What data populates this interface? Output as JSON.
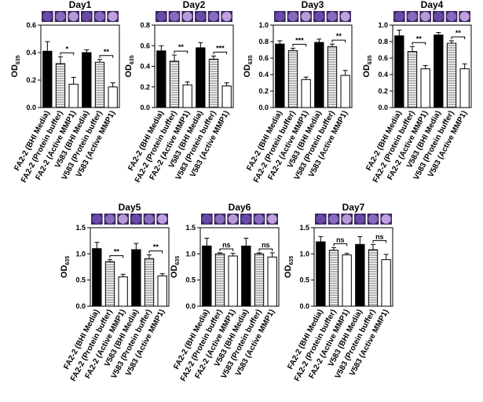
{
  "chart_data": [
    {
      "type": "bar",
      "title": "Day1",
      "ylabel": "OD",
      "ylabel_sub": "635",
      "categories": [
        "FA2-2 (BHI Media)",
        "FA2-2 (Protein buffer)",
        "FA2-2 (Active MMP1)",
        "V583 (BHI Media)",
        "V583 (Protein buffer)",
        "V583 (Active MMP1)"
      ],
      "values": [
        0.41,
        0.32,
        0.17,
        0.4,
        0.33,
        0.15
      ],
      "errors": [
        0.07,
        0.05,
        0.05,
        0.02,
        0.02,
        0.03
      ],
      "bar_styles": [
        "solid",
        "hatched",
        "open",
        "solid",
        "hatched",
        "open"
      ],
      "ylim": [
        0,
        0.6
      ],
      "yticks": [
        {
          "value": 0,
          "label": "0.0"
        },
        0.2,
        0.4,
        0.6
      ],
      "annotations": [
        "*",
        "**"
      ]
    },
    {
      "type": "bar",
      "title": "Day2",
      "ylabel": "OD",
      "ylabel_sub": "635",
      "categories": [
        "FA2-2 (BHI Media)",
        "FA2-2 (Protein buffer)",
        "FA2-2 (Active MMP1)",
        "V583 (BHI Media)",
        "V583 (Protein buffer)",
        "V583 (Active MMP1)"
      ],
      "values": [
        0.55,
        0.45,
        0.22,
        0.58,
        0.47,
        0.21
      ],
      "errors": [
        0.05,
        0.06,
        0.03,
        0.05,
        0.03,
        0.03
      ],
      "bar_styles": [
        "solid",
        "hatched",
        "open",
        "solid",
        "hatched",
        "open"
      ],
      "ylim": [
        0,
        0.8
      ],
      "yticks": [
        {
          "value": 0,
          "label": "0.0"
        },
        0.2,
        0.4,
        0.6,
        0.8
      ],
      "annotations": [
        "**",
        "***"
      ]
    },
    {
      "type": "bar",
      "title": "Day3",
      "ylabel": "OD",
      "ylabel_sub": "635",
      "categories": [
        "FA2-2 (BHI Media)",
        "FA2-2 (Protein buffer)",
        "FA2-2 (Active MMP1)",
        "V583 (BHI Media)",
        "V583 (Protein buffer)",
        "V583 (Active MMP1)"
      ],
      "values": [
        0.77,
        0.69,
        0.34,
        0.79,
        0.74,
        0.39
      ],
      "errors": [
        0.04,
        0.03,
        0.03,
        0.04,
        0.03,
        0.06
      ],
      "bar_styles": [
        "solid",
        "hatched",
        "open",
        "solid",
        "hatched",
        "open"
      ],
      "ylim": [
        0,
        1.0
      ],
      "yticks": [
        {
          "value": 0,
          "label": "0.0"
        },
        0.2,
        0.4,
        0.6,
        0.8,
        {
          "value": 1,
          "label": "1.0"
        }
      ],
      "annotations": [
        "***",
        "**"
      ]
    },
    {
      "type": "bar",
      "title": "Day4",
      "ylabel": "OD",
      "ylabel_sub": "635",
      "categories": [
        "FA2-2 (BHI Media)",
        "FA2-2 (Protein buffer)",
        "FA2-2 (Active MMP1)",
        "V583 (BHI Media)",
        "V583 (Protein buffer)",
        "V583 (Active MMP1)"
      ],
      "values": [
        0.87,
        0.68,
        0.47,
        0.88,
        0.78,
        0.47
      ],
      "errors": [
        0.07,
        0.06,
        0.04,
        0.03,
        0.03,
        0.06
      ],
      "bar_styles": [
        "solid",
        "hatched",
        "open",
        "solid",
        "hatched",
        "open"
      ],
      "ylim": [
        0,
        1.0
      ],
      "yticks": [
        {
          "value": 0,
          "label": "0.0"
        },
        0.2,
        0.4,
        0.6,
        0.8,
        {
          "value": 1,
          "label": "1.0"
        }
      ],
      "annotations": [
        "**",
        "**"
      ]
    },
    {
      "type": "bar",
      "title": "Day5",
      "ylabel": "OD",
      "ylabel_sub": "635",
      "categories": [
        "FA2-2 (BHI Media)",
        "FA2-2 (Protein buffer)",
        "FA2-2 (Active MMP1)",
        "V583 (BHI Media)",
        "V583 (Protein buffer)",
        "V583 (Active MMP1)"
      ],
      "values": [
        1.1,
        0.85,
        0.56,
        1.08,
        0.91,
        0.58
      ],
      "errors": [
        0.12,
        0.04,
        0.05,
        0.12,
        0.07,
        0.04
      ],
      "bar_styles": [
        "solid",
        "hatched",
        "open",
        "solid",
        "hatched",
        "open"
      ],
      "ylim": [
        0,
        1.5
      ],
      "yticks": [
        {
          "value": 0,
          "label": "0.0"
        },
        0.5,
        {
          "value": 1,
          "label": "1.0"
        },
        1.5
      ],
      "annotations": [
        "**",
        "**"
      ]
    },
    {
      "type": "bar",
      "title": "Day6",
      "ylabel": "OD",
      "ylabel_sub": "635",
      "categories": [
        "FA2-2 (BHI Media)",
        "FA2-2 (Protein buffer)",
        "FA2-2 (Active MMP1)",
        "V583 (BHI Media)",
        "V583 (Protein buffer)",
        "V583 (Active MMP1)"
      ],
      "values": [
        1.15,
        1.0,
        0.96,
        1.15,
        1.0,
        0.94
      ],
      "errors": [
        0.15,
        0.02,
        0.05,
        0.15,
        0.02,
        0.08
      ],
      "bar_styles": [
        "solid",
        "hatched",
        "open",
        "solid",
        "hatched",
        "open"
      ],
      "ylim": [
        0,
        1.5
      ],
      "yticks": [
        {
          "value": 0,
          "label": "0.0"
        },
        0.5,
        {
          "value": 1,
          "label": "1.0"
        },
        1.5
      ],
      "annotations": [
        "ns",
        "ns"
      ]
    },
    {
      "type": "bar",
      "title": "Day7",
      "ylabel": "OD",
      "ylabel_sub": "635",
      "categories": [
        "FA2-2 (BHI Media)",
        "FA2-2 (Protein buffer)",
        "FA2-2 (Active MMP1)",
        "V583 (BHI Media)",
        "V583 (Protein buffer)",
        "V583 (Active MMP1)"
      ],
      "values": [
        1.23,
        1.07,
        0.98,
        1.18,
        1.08,
        0.89
      ],
      "errors": [
        0.1,
        0.05,
        0.03,
        0.15,
        0.1,
        0.1
      ],
      "bar_styles": [
        "solid",
        "hatched",
        "open",
        "solid",
        "hatched",
        "open"
      ],
      "ylim": [
        0,
        1.5
      ],
      "yticks": [
        {
          "value": 0,
          "label": "0.0"
        },
        0.5,
        {
          "value": 1,
          "label": "1.0"
        },
        1.5
      ],
      "annotations": [
        "ns",
        "ns"
      ]
    }
  ]
}
